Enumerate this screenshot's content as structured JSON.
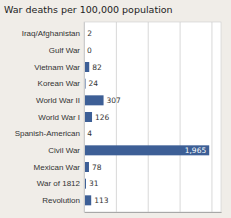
{
  "chart_data": {
    "type": "bar",
    "orientation": "horizontal",
    "title": "War deaths per 100,000 population",
    "categories": [
      "Iraq/Afghanistan",
      "Gulf War",
      "Vietnam War",
      "Korean War",
      "World War II",
      "World War I",
      "Spanish-American",
      "Civil War",
      "Mexican War",
      "War of 1812",
      "Revolution"
    ],
    "values": [
      2,
      0,
      82,
      24,
      307,
      126,
      4,
      1965,
      78,
      31,
      113
    ],
    "value_labels": [
      "2",
      "0",
      "82",
      "24",
      "307",
      "126",
      "4",
      "1,965",
      "78",
      "31",
      "113"
    ],
    "data_labels": true,
    "color": "#3d5f96",
    "xlim": [
      0,
      2150
    ],
    "xticks": [
      0,
      500,
      1000,
      1500,
      2000
    ],
    "grid": true,
    "tick_labels": "y"
  }
}
